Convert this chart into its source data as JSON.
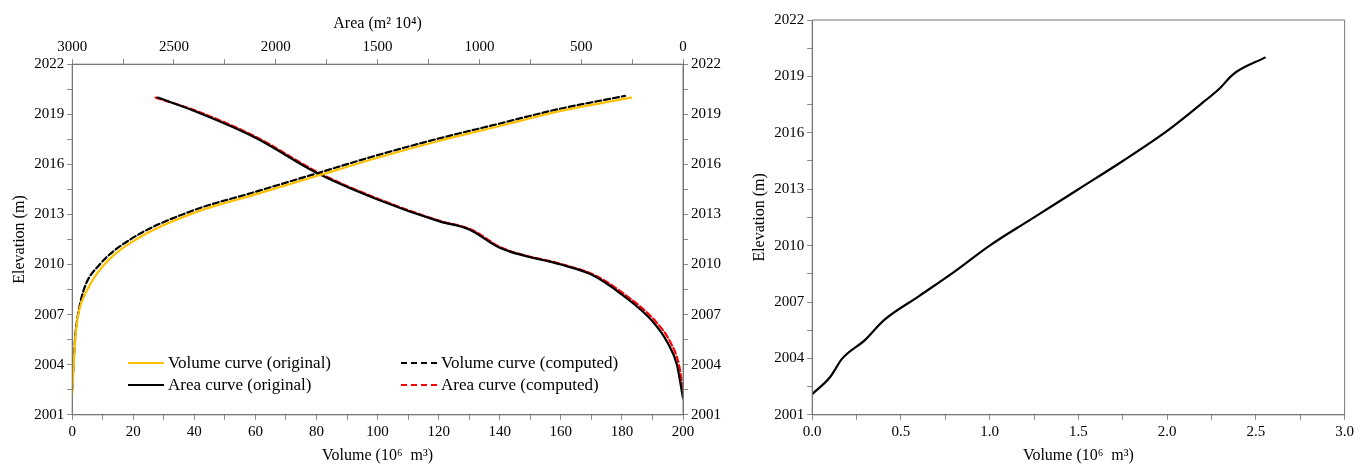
{
  "chart_data": [
    {
      "type": "line",
      "xlabel": "Volume (10⁶  m³)",
      "ylabel": "Elevation (m)",
      "x2label": "Area (m² 10⁴)",
      "xlim": [
        0,
        200
      ],
      "xticks": [
        0,
        {
          "value": 10,
          "label": null
        },
        20,
        {
          "value": 30,
          "label": null
        },
        40,
        {
          "value": 50,
          "label": null
        },
        60,
        {
          "value": 70,
          "label": null
        },
        80,
        {
          "value": 90,
          "label": null
        },
        100,
        {
          "value": 110,
          "label": null
        },
        120,
        {
          "value": 130,
          "label": null
        },
        140,
        {
          "value": 150,
          "label": null
        },
        160,
        {
          "value": 170,
          "label": null
        },
        180,
        {
          "value": 190,
          "label": null
        },
        200
      ],
      "x2lim": [
        3000,
        0
      ],
      "x2ticks": [
        3000,
        {
          "value": 2750,
          "label": null
        },
        2500,
        {
          "value": 2250,
          "label": null
        },
        2000,
        {
          "value": 1750,
          "label": null
        },
        1500,
        {
          "value": 1250,
          "label": null
        },
        1000,
        {
          "value": 750,
          "label": null
        },
        500,
        {
          "value": 250,
          "label": null
        },
        0
      ],
      "ylim": [
        2001,
        2022
      ],
      "yticks": [
        2001,
        {
          "value": 2002.5,
          "label": null
        },
        2004,
        {
          "value": 2005.5,
          "label": null
        },
        2007,
        {
          "value": 2008.5,
          "label": null
        },
        2010,
        {
          "value": 2011.5,
          "label": null
        },
        2013,
        {
          "value": 2014.5,
          "label": null
        },
        2016,
        {
          "value": 2017.5,
          "label": null
        },
        2019,
        {
          "value": 2020.5,
          "label": null
        },
        2022
      ],
      "y2lim": [
        2001,
        2022
      ],
      "y2ticks": [
        2001,
        {
          "value": 2002.5,
          "label": null
        },
        2004,
        {
          "value": 2005.5,
          "label": null
        },
        2007,
        {
          "value": 2008.5,
          "label": null
        },
        2010,
        {
          "value": 2011.5,
          "label": null
        },
        2013,
        {
          "value": 2014.5,
          "label": null
        },
        2016,
        {
          "value": 2017.5,
          "label": null
        },
        2019,
        {
          "value": 2020.5,
          "label": null
        },
        2022
      ],
      "grid": false,
      "legend": "bottom",
      "marker": "none",
      "series": [
        {
          "name": "Volume curve (original)",
          "color": "#ffc000",
          "line_style": "solid",
          "x": [
            0,
            0.5,
            1,
            2,
            5,
            10,
            20,
            40,
            60,
            80,
            100,
            120,
            140,
            160,
            183
          ],
          "values": [
            2002.3,
            2004,
            2005.5,
            2007,
            2008.5,
            2009.9,
            2011.4,
            2013.1,
            2014.2,
            2015.3,
            2016.4,
            2017.4,
            2018.3,
            2019.2,
            2020
          ]
        },
        {
          "name": "Area curve (original)",
          "color": "#000000",
          "line_style": "solid",
          "axis": "x2",
          "x": [
            2580,
            2400,
            2100,
            1800,
            1500,
            1200,
            1050,
            900,
            600,
            450,
            300,
            150,
            75,
            30,
            0
          ],
          "values": [
            2020,
            2019.2,
            2017.6,
            2015.5,
            2013.9,
            2012.6,
            2012.1,
            2011,
            2010,
            2009.4,
            2008.2,
            2006.6,
            2005.3,
            2004,
            2002
          ]
        },
        {
          "name": "Volume curve (computed)",
          "color": "#000000",
          "line_style": "dashed",
          "x": [
            0,
            0.5,
            1,
            2,
            4,
            9,
            19,
            39,
            59,
            79,
            99,
            119,
            139,
            159,
            181
          ],
          "values": [
            2002.5,
            2004.2,
            2005.7,
            2007.1,
            2008.6,
            2010,
            2011.5,
            2013.2,
            2014.3,
            2015.4,
            2016.5,
            2017.5,
            2018.4,
            2019.3,
            2020.1
          ]
        },
        {
          "name": "Area curve (computed)",
          "color": "#ff0000",
          "line_style": "dashed",
          "axis": "x2",
          "x": [
            2590,
            2390,
            2090,
            1790,
            1490,
            1190,
            1040,
            890,
            590,
            440,
            285,
            135,
            60,
            20,
            0
          ],
          "values": [
            2020,
            2019.2,
            2017.6,
            2015.5,
            2013.9,
            2012.6,
            2012.1,
            2011,
            2010,
            2009.4,
            2008.2,
            2006.6,
            2005.3,
            2004,
            2002.5
          ]
        }
      ]
    },
    {
      "type": "line",
      "xlabel": "Volume (10⁶  m³)",
      "ylabel": "Elevation (m)",
      "xlim": [
        0,
        3
      ],
      "xticks": [
        {
          "value": 0,
          "label": "0.0"
        },
        {
          "value": 0.25,
          "label": null
        },
        0.5,
        {
          "value": 0.75,
          "label": null
        },
        {
          "value": 1,
          "label": "1.0"
        },
        {
          "value": 1.25,
          "label": null
        },
        1.5,
        {
          "value": 1.75,
          "label": null
        },
        {
          "value": 2,
          "label": "2.0"
        },
        {
          "value": 2.25,
          "label": null
        },
        2.5,
        {
          "value": 2.75,
          "label": null
        },
        {
          "value": 3,
          "label": "3.0"
        }
      ],
      "ylim": [
        2001,
        2022
      ],
      "yticks": [
        2001,
        {
          "value": 2002.5,
          "label": null
        },
        2004,
        {
          "value": 2005.5,
          "label": null
        },
        2007,
        {
          "value": 2008.5,
          "label": null
        },
        2010,
        {
          "value": 2011.5,
          "label": null
        },
        2013,
        {
          "value": 2014.5,
          "label": null
        },
        2016,
        {
          "value": 2017.5,
          "label": null
        },
        2019,
        {
          "value": 2020.5,
          "label": null
        },
        2022
      ],
      "grid": false,
      "marker": "none",
      "series": [
        {
          "color": "#000000",
          "line_style": "solid",
          "x": [
            0,
            0.1,
            0.17,
            0.3,
            0.4,
            0.6,
            0.8,
            1.0,
            1.25,
            1.5,
            1.75,
            2.0,
            2.2,
            2.3,
            2.37,
            2.55
          ],
          "values": [
            2002.1,
            2003,
            2004,
            2005,
            2006,
            2007.3,
            2008.6,
            2010,
            2011.5,
            2013,
            2014.5,
            2016.1,
            2017.6,
            2018.4,
            2019.1,
            2020
          ]
        }
      ]
    }
  ]
}
